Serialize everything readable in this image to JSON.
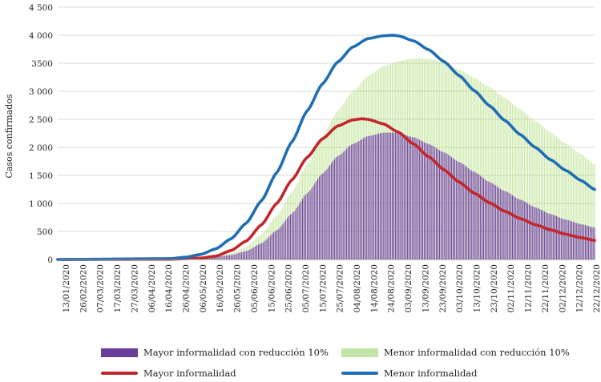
{
  "chart_data": {
    "type": "bar+line",
    "title": "",
    "xlabel": "",
    "ylabel": "Casos confirmados",
    "ylim": [
      0,
      4500
    ],
    "yticks": [
      0,
      500,
      1000,
      1500,
      2000,
      2500,
      3000,
      3500,
      4000,
      4500
    ],
    "ytick_labels": [
      "0",
      "500",
      "1 000",
      "1 500",
      "2 000",
      "2 500",
      "3 000",
      "3500",
      "4 000",
      "4 500"
    ],
    "x_start": "13/01/2020",
    "x_end": "31/12/2020",
    "xtick_labels": [
      "13/01/2020",
      "26/02/2020",
      "07/03/2020",
      "17/03/2020",
      "27/03/2020",
      "06/04/2020",
      "16/04/2020",
      "26/04/2020",
      "06/05/2020",
      "16/05/2020",
      "26/05/2020",
      "05/06/2020",
      "15/06/2020",
      "25/06/2020",
      "05/07/2020",
      "15/07/2020",
      "25/07/2020",
      "04/08/2020",
      "14/08/2020",
      "24/08/2020",
      "03/09/2020",
      "13/09/2020",
      "23/09/2020",
      "03/10/2020",
      "13/10/2020",
      "23/10/2020",
      "02/11/2020",
      "12/11/2020",
      "22/11/2020",
      "02/12/2020",
      "12/12/2020",
      "22/12/2020"
    ],
    "series": [
      {
        "name": "Mayor informalidad con reducción 10%",
        "kind": "bar",
        "color": "#6a3d9a",
        "points": [
          [
            "13/01/2020",
            0
          ],
          [
            "27/03/2020",
            5
          ],
          [
            "16/04/2020",
            20
          ],
          [
            "26/04/2020",
            45
          ],
          [
            "06/05/2020",
            80
          ],
          [
            "16/05/2020",
            150
          ],
          [
            "26/05/2020",
            290
          ],
          [
            "05/06/2020",
            520
          ],
          [
            "15/06/2020",
            820
          ],
          [
            "25/06/2020",
            1180
          ],
          [
            "05/07/2020",
            1530
          ],
          [
            "15/07/2020",
            1840
          ],
          [
            "25/07/2020",
            2060
          ],
          [
            "04/08/2020",
            2200
          ],
          [
            "14/08/2020",
            2260
          ],
          [
            "20/08/2020",
            2265
          ],
          [
            "24/08/2020",
            2250
          ],
          [
            "03/09/2020",
            2180
          ],
          [
            "13/09/2020",
            2060
          ],
          [
            "23/09/2020",
            1910
          ],
          [
            "03/10/2020",
            1740
          ],
          [
            "13/10/2020",
            1560
          ],
          [
            "23/10/2020",
            1380
          ],
          [
            "02/11/2020",
            1220
          ],
          [
            "12/11/2020",
            1070
          ],
          [
            "22/11/2020",
            930
          ],
          [
            "02/12/2020",
            810
          ],
          [
            "12/12/2020",
            710
          ],
          [
            "22/12/2020",
            630
          ],
          [
            "31/12/2020",
            570
          ]
        ]
      },
      {
        "name": "Menor informalidad con reducción 10%",
        "kind": "bar",
        "color": "#a6d96a",
        "points": [
          [
            "13/01/2020",
            0
          ],
          [
            "27/03/2020",
            8
          ],
          [
            "16/04/2020",
            30
          ],
          [
            "26/04/2020",
            65
          ],
          [
            "06/05/2020",
            120
          ],
          [
            "16/05/2020",
            230
          ],
          [
            "26/05/2020",
            450
          ],
          [
            "05/06/2020",
            780
          ],
          [
            "15/06/2020",
            1200
          ],
          [
            "25/06/2020",
            1700
          ],
          [
            "05/07/2020",
            2200
          ],
          [
            "15/07/2020",
            2650
          ],
          [
            "25/07/2020",
            3000
          ],
          [
            "04/08/2020",
            3270
          ],
          [
            "14/08/2020",
            3440
          ],
          [
            "24/08/2020",
            3540
          ],
          [
            "03/09/2020",
            3590
          ],
          [
            "13/09/2020",
            3580
          ],
          [
            "23/09/2020",
            3510
          ],
          [
            "03/10/2020",
            3390
          ],
          [
            "13/10/2020",
            3240
          ],
          [
            "23/10/2020",
            3070
          ],
          [
            "02/11/2020",
            2880
          ],
          [
            "12/11/2020",
            2680
          ],
          [
            "22/11/2020",
            2470
          ],
          [
            "02/12/2020",
            2270
          ],
          [
            "12/12/2020",
            2070
          ],
          [
            "22/12/2020",
            1880
          ],
          [
            "31/12/2020",
            1700
          ]
        ]
      },
      {
        "name": "Mayor informalidad",
        "kind": "line",
        "color": "#c1272d",
        "points": [
          [
            "13/01/2020",
            0
          ],
          [
            "27/03/2020",
            5
          ],
          [
            "16/04/2020",
            25
          ],
          [
            "26/04/2020",
            60
          ],
          [
            "06/05/2020",
            160
          ],
          [
            "16/05/2020",
            330
          ],
          [
            "26/05/2020",
            620
          ],
          [
            "05/06/2020",
            1000
          ],
          [
            "15/06/2020",
            1420
          ],
          [
            "25/06/2020",
            1820
          ],
          [
            "05/07/2020",
            2150
          ],
          [
            "15/07/2020",
            2380
          ],
          [
            "25/07/2020",
            2490
          ],
          [
            "31/07/2020",
            2510
          ],
          [
            "04/08/2020",
            2500
          ],
          [
            "14/08/2020",
            2420
          ],
          [
            "24/08/2020",
            2270
          ],
          [
            "03/09/2020",
            2060
          ],
          [
            "13/09/2020",
            1830
          ],
          [
            "23/09/2020",
            1600
          ],
          [
            "03/10/2020",
            1380
          ],
          [
            "13/10/2020",
            1180
          ],
          [
            "23/10/2020",
            1010
          ],
          [
            "02/11/2020",
            860
          ],
          [
            "12/11/2020",
            730
          ],
          [
            "22/11/2020",
            620
          ],
          [
            "02/12/2020",
            530
          ],
          [
            "12/12/2020",
            450
          ],
          [
            "22/12/2020",
            390
          ],
          [
            "31/12/2020",
            340
          ]
        ]
      },
      {
        "name": "Menor informalidad",
        "kind": "line",
        "color": "#1f6db3",
        "points": [
          [
            "13/01/2020",
            0
          ],
          [
            "27/03/2020",
            15
          ],
          [
            "06/04/2020",
            40
          ],
          [
            "16/04/2020",
            90
          ],
          [
            "26/04/2020",
            190
          ],
          [
            "06/05/2020",
            370
          ],
          [
            "16/05/2020",
            650
          ],
          [
            "26/05/2020",
            1050
          ],
          [
            "05/06/2020",
            1550
          ],
          [
            "15/06/2020",
            2100
          ],
          [
            "25/06/2020",
            2650
          ],
          [
            "05/07/2020",
            3130
          ],
          [
            "15/07/2020",
            3520
          ],
          [
            "25/07/2020",
            3790
          ],
          [
            "04/08/2020",
            3940
          ],
          [
            "14/08/2020",
            3990
          ],
          [
            "20/08/2020",
            4000
          ],
          [
            "24/08/2020",
            3990
          ],
          [
            "03/09/2020",
            3900
          ],
          [
            "13/09/2020",
            3740
          ],
          [
            "23/09/2020",
            3530
          ],
          [
            "03/10/2020",
            3280
          ],
          [
            "13/10/2020",
            3010
          ],
          [
            "23/10/2020",
            2740
          ],
          [
            "02/11/2020",
            2480
          ],
          [
            "12/11/2020",
            2230
          ],
          [
            "22/11/2020",
            2000
          ],
          [
            "02/12/2020",
            1780
          ],
          [
            "12/12/2020",
            1590
          ],
          [
            "22/12/2020",
            1410
          ],
          [
            "31/12/2020",
            1250
          ]
        ]
      }
    ],
    "legend_position": "bottom"
  },
  "legend": {
    "item1": "Mayor informalidad con reducción 10%",
    "item2": "Menor informalidad con reducción 10%",
    "item3": "Mayor informalidad",
    "item4": "Menor informalidad"
  },
  "colors": {
    "purple": "#6a3d9a",
    "green": "#a6d96a",
    "red": "#c1272d",
    "blue": "#1f6db3",
    "grid": "#d9d9d9"
  }
}
